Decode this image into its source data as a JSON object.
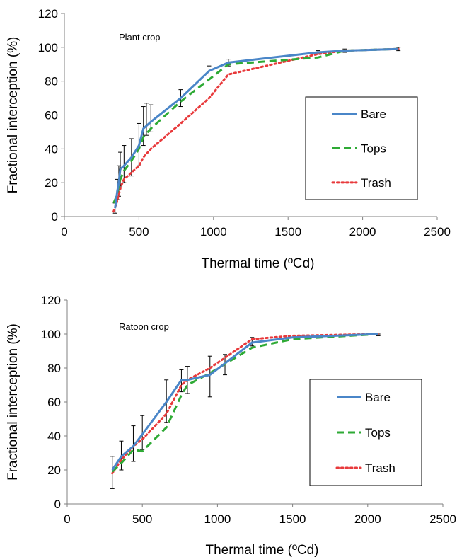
{
  "chart_data": [
    {
      "type": "line",
      "annotation": "Plant crop",
      "xlabel": "Thermal time (ºCd)",
      "ylabel": "Fractional interception (%)",
      "xlim": [
        0,
        2500
      ],
      "ylim": [
        0,
        120
      ],
      "xticks": [
        "0",
        "500",
        "1000",
        "1500",
        "2000",
        "2500"
      ],
      "yticks": [
        "0",
        "20",
        "40",
        "60",
        "80",
        "100",
        "120"
      ],
      "grid": false,
      "legend": "bottom-right",
      "series": [
        {
          "name": "Bare",
          "color": "#4a86c8",
          "dash": "solid",
          "x": [
            340,
            355,
            365,
            375,
            400,
            450,
            500,
            530,
            580,
            780,
            970,
            1100,
            1700,
            1880,
            2240
          ],
          "y": [
            5,
            15,
            20,
            28,
            30,
            35,
            42,
            52,
            56,
            70,
            86,
            91,
            97,
            98,
            99
          ]
        },
        {
          "name": "Tops",
          "color": "#2eaa35",
          "dash": "dashed",
          "x": [
            330,
            350,
            365,
            375,
            400,
            450,
            500,
            530,
            580,
            780,
            970,
            1100,
            1700,
            1880,
            2240
          ],
          "y": [
            8,
            12,
            18,
            22,
            27,
            33,
            40,
            47,
            52,
            68,
            81,
            90,
            94,
            98,
            99
          ]
        },
        {
          "name": "Trash",
          "color": "#e8393b",
          "dash": "dotted",
          "x": [
            330,
            350,
            365,
            380,
            400,
            450,
            500,
            530,
            580,
            780,
            970,
            1100,
            1700,
            1880,
            2240
          ],
          "y": [
            3,
            8,
            13,
            18,
            22,
            26,
            30,
            35,
            40,
            55,
            70,
            84,
            96,
            98,
            99
          ]
        }
      ],
      "error_bars": [
        {
          "x": 340,
          "lo": 2,
          "hi": 8
        },
        {
          "x": 355,
          "lo": 10,
          "hi": 22
        },
        {
          "x": 365,
          "lo": 12,
          "hi": 30
        },
        {
          "x": 375,
          "lo": 18,
          "hi": 38
        },
        {
          "x": 400,
          "lo": 20,
          "hi": 42
        },
        {
          "x": 450,
          "lo": 24,
          "hi": 46
        },
        {
          "x": 500,
          "lo": 30,
          "hi": 55
        },
        {
          "x": 530,
          "lo": 42,
          "hi": 65
        },
        {
          "x": 550,
          "lo": 48,
          "hi": 67
        },
        {
          "x": 580,
          "lo": 50,
          "hi": 66
        },
        {
          "x": 780,
          "lo": 65,
          "hi": 75
        },
        {
          "x": 970,
          "lo": 83,
          "hi": 89
        },
        {
          "x": 1100,
          "lo": 89,
          "hi": 93
        },
        {
          "x": 1700,
          "lo": 96,
          "hi": 98
        },
        {
          "x": 1880,
          "lo": 97,
          "hi": 99
        },
        {
          "x": 2240,
          "lo": 98,
          "hi": 100
        }
      ]
    },
    {
      "type": "line",
      "annotation": "Ratoon crop",
      "xlabel": "Thermal time (ºCd)",
      "ylabel": "Fractional interception (%)",
      "xlim": [
        0,
        2500
      ],
      "ylim": [
        0,
        120
      ],
      "xticks": [
        "0",
        "500",
        "1000",
        "1500",
        "2000",
        "2500"
      ],
      "yticks": [
        "0",
        "20",
        "40",
        "60",
        "80",
        "100",
        "120"
      ],
      "grid": false,
      "legend": "bottom-right",
      "series": [
        {
          "name": "Bare",
          "color": "#4a86c8",
          "dash": "solid",
          "x": [
            300,
            360,
            440,
            500,
            660,
            760,
            800,
            950,
            1230,
            1500,
            2070
          ],
          "y": [
            20,
            28,
            34,
            41,
            60,
            73,
            73,
            76,
            95,
            98,
            100
          ]
        },
        {
          "name": "Tops",
          "color": "#2eaa35",
          "dash": "dashed",
          "x": [
            300,
            360,
            440,
            500,
            660,
            760,
            800,
            950,
            1230,
            1500,
            2070
          ],
          "y": [
            19,
            24,
            32,
            31,
            45,
            64,
            70,
            77,
            92,
            97,
            100
          ]
        },
        {
          "name": "Trash",
          "color": "#e8393b",
          "dash": "dotted",
          "x": [
            300,
            360,
            440,
            500,
            660,
            760,
            800,
            950,
            1230,
            1500,
            2070
          ],
          "y": [
            18,
            26,
            34,
            38,
            53,
            70,
            73,
            80,
            97,
            99,
            100
          ]
        }
      ],
      "error_bars": [
        {
          "x": 300,
          "lo": 9,
          "hi": 28
        },
        {
          "x": 360,
          "lo": 20,
          "hi": 37
        },
        {
          "x": 440,
          "lo": 25,
          "hi": 46
        },
        {
          "x": 500,
          "lo": 32,
          "hi": 52
        },
        {
          "x": 660,
          "lo": 48,
          "hi": 73
        },
        {
          "x": 760,
          "lo": 66,
          "hi": 79
        },
        {
          "x": 800,
          "lo": 65,
          "hi": 81
        },
        {
          "x": 950,
          "lo": 63,
          "hi": 87
        },
        {
          "x": 1050,
          "lo": 76,
          "hi": 88
        },
        {
          "x": 1230,
          "lo": 93,
          "hi": 98
        },
        {
          "x": 2070,
          "lo": 99,
          "hi": 100
        }
      ]
    }
  ]
}
